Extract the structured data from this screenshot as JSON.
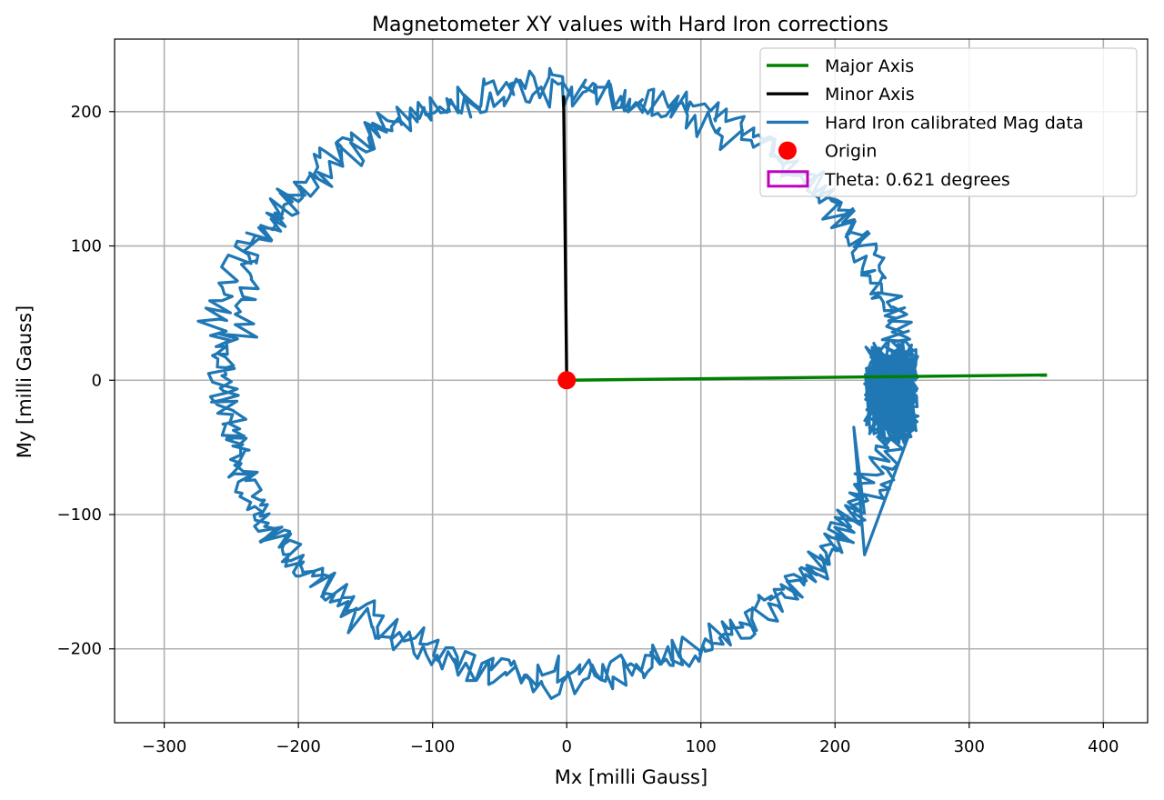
{
  "chart_data": {
    "type": "line",
    "title": "Magnetometer XY values with Hard Iron corrections",
    "xlabel": "Mx [milli Gauss]",
    "ylabel": "My [milli Gauss]",
    "xlim": [
      -337,
      433
    ],
    "ylim": [
      -255,
      254
    ],
    "xticks": [
      -300,
      -200,
      -100,
      0,
      100,
      200,
      300,
      400
    ],
    "yticks": [
      -200,
      -100,
      0,
      100,
      200
    ],
    "xtick_labels": [
      "−300",
      "−200",
      "−100",
      "0",
      "100",
      "200",
      "300",
      "400"
    ],
    "ytick_labels": [
      "−200",
      "−100",
      "0",
      "100",
      "200"
    ],
    "grid": true,
    "legend_position": "top-right",
    "colors": {
      "major_axis": "#008000",
      "minor_axis": "#000000",
      "mag_data": "#1f77b4",
      "origin": "#ff0000",
      "theta": "#bf00bf"
    },
    "series": [
      {
        "name": "Major Axis",
        "kind": "line",
        "x": [
          0,
          358
        ],
        "y": [
          0,
          3.9
        ]
      },
      {
        "name": "Minor Axis",
        "kind": "line",
        "x": [
          0,
          -2.3
        ],
        "y": [
          0,
          212
        ]
      },
      {
        "name": "Hard Iron calibrated Mag data",
        "kind": "line",
        "ellipse": {
          "cx": 0,
          "cy": 0,
          "rx_right": 245,
          "rx_left": 258,
          "ry": 218
        },
        "bulge": {
          "x": 242,
          "y": -10,
          "rx": 20,
          "ry": 45
        },
        "spike": {
          "x": [
            222,
            214,
            222
          ],
          "y": [
            -130,
            -35,
            -100
          ]
        }
      },
      {
        "name": "Origin",
        "kind": "point",
        "x": [
          0
        ],
        "y": [
          0
        ]
      },
      {
        "name": "Theta: 0.621 degrees",
        "kind": "patch"
      }
    ]
  }
}
